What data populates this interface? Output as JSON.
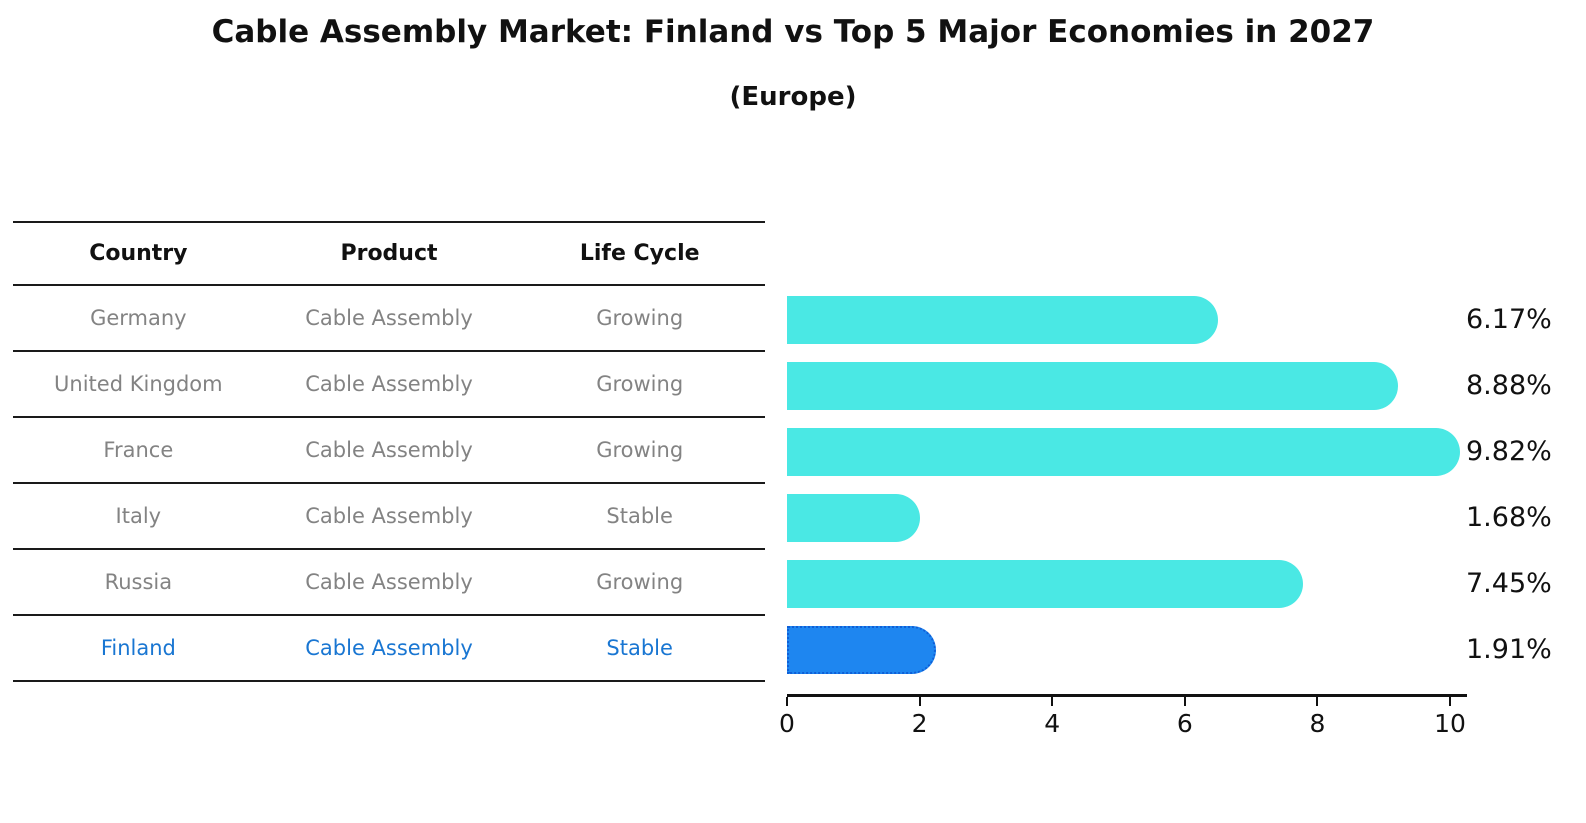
{
  "title": "Cable Assembly Market: Finland vs Top 5 Major Economies in 2027",
  "subtitle": "(Europe)",
  "table": {
    "headers": [
      "Country",
      "Product",
      "Life Cycle"
    ],
    "rows": [
      {
        "country": "Germany",
        "product": "Cable Assembly",
        "life_cycle": "Growing",
        "highlight": false
      },
      {
        "country": "United Kingdom",
        "product": "Cable Assembly",
        "life_cycle": "Growing",
        "highlight": false
      },
      {
        "country": "France",
        "product": "Cable Assembly",
        "life_cycle": "Growing",
        "highlight": false
      },
      {
        "country": "Italy",
        "product": "Cable Assembly",
        "life_cycle": "Stable",
        "highlight": false
      },
      {
        "country": "Russia",
        "product": "Cable Assembly",
        "life_cycle": "Growing",
        "highlight": false
      },
      {
        "country": "Finland",
        "product": "Cable Assembly",
        "life_cycle": "Stable",
        "highlight": true
      }
    ]
  },
  "chart_data": {
    "type": "bar",
    "orientation": "horizontal",
    "title": "Cable Assembly Market: Finland vs Top 5 Major Economies in 2027",
    "subtitle": "(Europe)",
    "categories": [
      "Germany",
      "United Kingdom",
      "France",
      "Italy",
      "Russia",
      "Finland"
    ],
    "values": [
      6.17,
      8.88,
      9.82,
      1.68,
      7.45,
      1.91
    ],
    "value_labels": [
      "6.17%",
      "8.88%",
      "9.82%",
      "1.68%",
      "7.45%",
      "1.91%"
    ],
    "xlim": [
      0,
      10.3
    ],
    "x_ticks": [
      0,
      2,
      4,
      6,
      8,
      10
    ],
    "x_tick_labels": [
      "0",
      "2",
      "4",
      "6",
      "8",
      "10"
    ],
    "grid": false,
    "legend": "none",
    "highlight_index": 5,
    "bar_color": "#4AE8E4",
    "highlight_color": "#1E86F0",
    "highlight_border_color": "#0F5FD7",
    "highlight_text_color": "#1976D2"
  }
}
